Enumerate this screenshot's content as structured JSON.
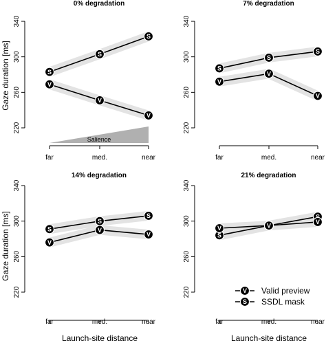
{
  "chart_data": [
    {
      "type": "line",
      "title": "0% degradation",
      "categories": [
        "far",
        "med.",
        "near"
      ],
      "ylim": [
        220,
        340
      ],
      "yticks": [
        220,
        260,
        300,
        340
      ],
      "series": [
        {
          "name": "SSDL mask",
          "marker": "S",
          "values": [
            283,
            303,
            323
          ]
        },
        {
          "name": "Valid preview",
          "marker": "V",
          "values": [
            269,
            251,
            234
          ]
        }
      ],
      "annotation": {
        "label": "Salience"
      }
    },
    {
      "type": "line",
      "title": "7% degradation",
      "categories": [
        "far",
        "med.",
        "near"
      ],
      "ylim": [
        220,
        340
      ],
      "yticks": [
        220,
        260,
        300,
        340
      ],
      "series": [
        {
          "name": "SSDL mask",
          "marker": "S",
          "values": [
            287,
            299,
            306
          ]
        },
        {
          "name": "Valid preview",
          "marker": "V",
          "values": [
            272,
            281,
            256
          ]
        }
      ]
    },
    {
      "type": "line",
      "title": "14% degradation",
      "categories": [
        "far",
        "med.",
        "near"
      ],
      "ylim": [
        220,
        340
      ],
      "yticks": [
        220,
        260,
        300,
        340
      ],
      "series": [
        {
          "name": "SSDL mask",
          "marker": "S",
          "values": [
            291,
            300,
            306
          ]
        },
        {
          "name": "Valid preview",
          "marker": "V",
          "values": [
            276,
            290,
            285
          ]
        }
      ]
    },
    {
      "type": "line",
      "title": "21% degradation",
      "categories": [
        "far",
        "med.",
        "near"
      ],
      "ylim": [
        220,
        340
      ],
      "yticks": [
        220,
        260,
        300,
        340
      ],
      "series": [
        {
          "name": "SSDL mask",
          "marker": "S",
          "values": [
            284,
            295,
            305
          ]
        },
        {
          "name": "Valid preview",
          "marker": "V",
          "values": [
            292,
            295,
            299
          ]
        }
      ]
    }
  ],
  "axes": {
    "ylabel": "Gaze duration [ms]",
    "xlabel": "Launch-site distance"
  },
  "legend": {
    "placement": "bottom-right of last panel",
    "entries": [
      {
        "marker": "V",
        "label": "Valid preview"
      },
      {
        "marker": "S",
        "label": "SSDL mask"
      }
    ]
  },
  "colors": {
    "line": "#000000",
    "band": "#e3e3e3",
    "salience": "#b0b0b0"
  }
}
